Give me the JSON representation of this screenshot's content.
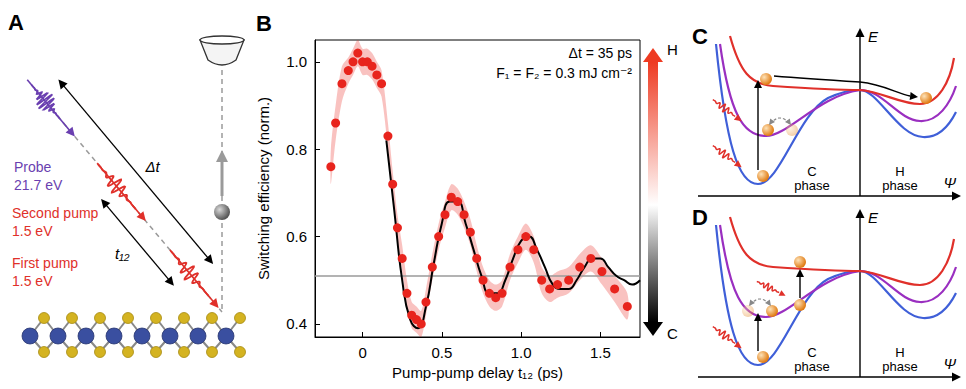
{
  "panel_a": {
    "label": "A",
    "probe": {
      "name": "Probe",
      "energy": "21.7 eV"
    },
    "second_pump": {
      "name": "Second pump",
      "energy": "1.5 eV"
    },
    "first_pump": {
      "name": "First pump",
      "energy": "1.5 eV"
    },
    "delay_probe": "Δt",
    "delay_pumps": "t₁₂"
  },
  "chart_data": {
    "type": "scatter",
    "panel": "B",
    "x_label": "Pump-pump delay t₁₂ (ps)",
    "y_label": "Switching efficiency (norm.)",
    "annotations": [
      "Δt = 35 ps",
      "F₁ = F₂ = 0.3 mJ cm⁻²"
    ],
    "xlim": [
      -0.3,
      1.75
    ],
    "xticks": [
      0,
      0.5,
      {
        "value": 1,
        "label": "1.0"
      },
      1.5
    ],
    "ylim": [
      0.37,
      1.05
    ],
    "yticks": [
      0.4,
      0.6,
      0.8,
      {
        "value": 1,
        "label": "1.0"
      }
    ],
    "grid": false,
    "series": [
      {
        "type": "scatter",
        "marker": "circle",
        "color": "#e8241d",
        "x": [
          -0.2,
          -0.17,
          -0.13,
          -0.09,
          -0.06,
          -0.03,
          0,
          0.03,
          0.06,
          0.09,
          0.12,
          0.16,
          0.19,
          0.22,
          0.25,
          0.28,
          0.31,
          0.34,
          0.37,
          0.4,
          0.44,
          0.48,
          0.52,
          0.56,
          0.6,
          0.64,
          0.68,
          0.72,
          0.76,
          0.8,
          0.84,
          0.88,
          0.93,
          0.98,
          1.03,
          1.08,
          1.13,
          1.18,
          1.23,
          1.3,
          1.37,
          1.44,
          1.51,
          1.59,
          1.67
        ],
        "values": [
          0.76,
          0.86,
          0.95,
          0.98,
          1.0,
          1.02,
          1.0,
          1.0,
          0.99,
          0.97,
          0.95,
          0.83,
          0.72,
          0.62,
          0.55,
          0.47,
          0.42,
          0.41,
          0.4,
          0.45,
          0.53,
          0.6,
          0.65,
          0.69,
          0.68,
          0.65,
          0.61,
          0.55,
          0.5,
          0.47,
          0.46,
          0.47,
          0.53,
          0.57,
          0.6,
          0.57,
          0.5,
          0.48,
          0.49,
          0.5,
          0.53,
          0.55,
          0.52,
          0.48,
          0.44
        ],
        "errors": [
          0.04,
          0.04,
          0.04,
          0.03,
          0.03,
          0.03,
          0.03,
          0.03,
          0.03,
          0.03,
          0.03,
          0.03,
          0.03,
          0.03,
          0.03,
          0.03,
          0.03,
          0.03,
          0.03,
          0.03,
          0.03,
          0.03,
          0.03,
          0.03,
          0.03,
          0.03,
          0.03,
          0.03,
          0.03,
          0.03,
          0.03,
          0.03,
          0.03,
          0.03,
          0.03,
          0.03,
          0.03,
          0.03,
          0.03,
          0.03,
          0.03,
          0.03,
          0.03,
          0.03,
          0.03
        ]
      },
      {
        "type": "line",
        "line_style": "solid",
        "color": "#000000",
        "x": [
          0.15,
          0.2,
          0.25,
          0.3,
          0.35,
          0.4,
          0.45,
          0.5,
          0.55,
          0.6,
          0.65,
          0.7,
          0.75,
          0.8,
          0.85,
          0.9,
          0.95,
          1.0,
          1.05,
          1.1,
          1.15,
          1.2,
          1.25,
          1.3,
          1.35,
          1.4,
          1.45,
          1.5,
          1.55,
          1.6,
          1.65,
          1.7,
          1.75
        ],
        "values": [
          0.82,
          0.66,
          0.5,
          0.41,
          0.39,
          0.44,
          0.54,
          0.63,
          0.68,
          0.68,
          0.63,
          0.57,
          0.51,
          0.47,
          0.47,
          0.5,
          0.55,
          0.59,
          0.6,
          0.57,
          0.53,
          0.49,
          0.48,
          0.48,
          0.5,
          0.53,
          0.55,
          0.55,
          0.53,
          0.51,
          0.5,
          0.49,
          0.5
        ]
      }
    ],
    "reference_line": {
      "value": 0.51,
      "color": "#9a9a9a"
    },
    "colorbar": {
      "top_label": "H",
      "bottom_label": "C",
      "colors": [
        "#ee3b22",
        "#ffffff",
        "#000000"
      ]
    }
  },
  "panel_c": {
    "label": "C",
    "energy_axis": "E",
    "coordinate_axis": "Ψ",
    "left_well": "C phase",
    "right_well": "H phase"
  },
  "panel_d": {
    "label": "D",
    "energy_axis": "E",
    "coordinate_axis": "Ψ",
    "left_well": "C phase",
    "right_well": "H phase"
  }
}
